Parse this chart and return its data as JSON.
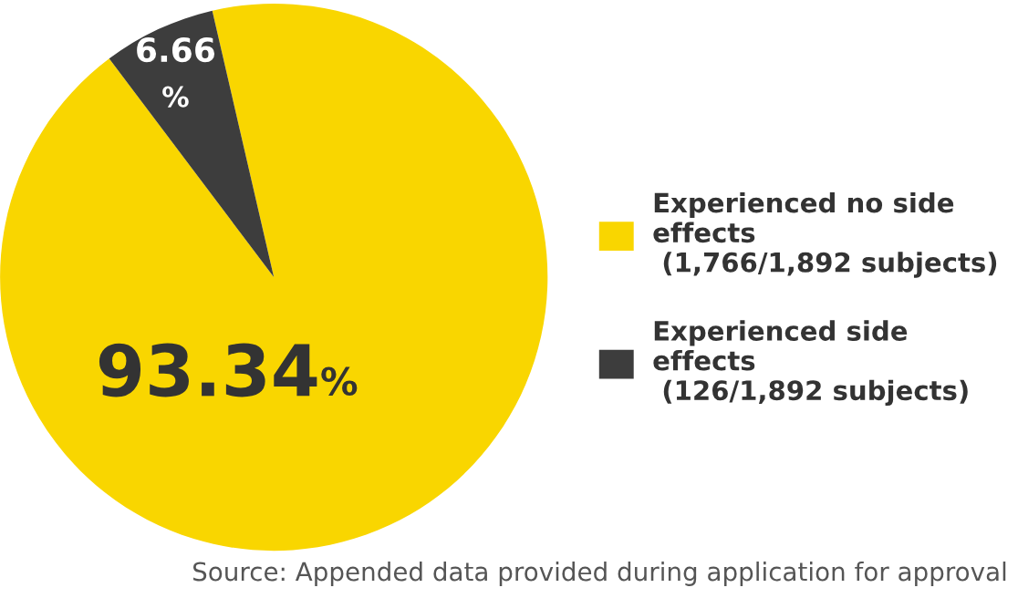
{
  "chart_data": {
    "type": "pie",
    "categories": [
      "Experienced no side\neffects\n (1,766/1,892 subjects)",
      "Experienced side\neffects\n (126/1,892 subjects)"
    ],
    "values": [
      93.34,
      6.66
    ],
    "colors": [
      "#f9d600",
      "#3d3d3d"
    ],
    "value_labels": [
      "93.34%",
      "6.66%"
    ],
    "legend": "right",
    "annotations": [
      "Source: Appended data provided during application for approval"
    ]
  }
}
